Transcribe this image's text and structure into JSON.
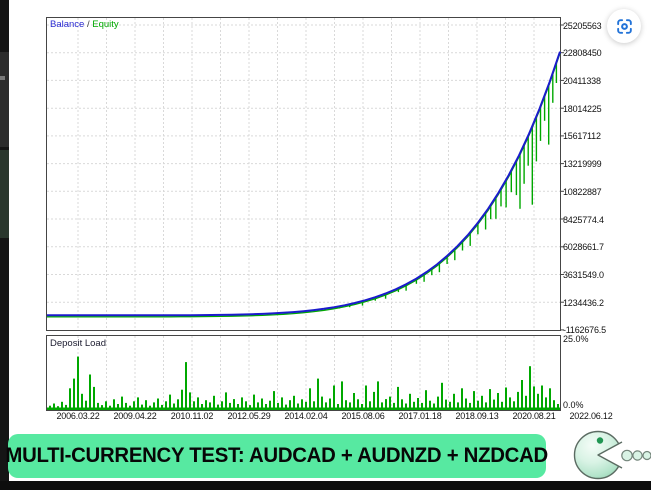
{
  "legend_separator": " / ",
  "colors": {
    "balance": "#1b1bcc",
    "equity": "#00a800",
    "deposit_bars": "#00a800",
    "grid": "#d9d9d9",
    "chart_border": "#454545",
    "accent_blue": "#2273d8",
    "banner_bg": "#57e9a1",
    "banner_text": "#070707",
    "logo_green": "#219653"
  },
  "icons": {
    "top_right_button": "screenshot-capture-icon",
    "bottom_right_logo": "pacman-logo"
  },
  "banner": {
    "text": "MULTI-CURRENCY TEST: AUDCAD + AUDNZD + NZDCAD"
  },
  "chart_data": [
    {
      "type": "line",
      "title": "Balance / Equity",
      "grid": true,
      "legend_position": "top-left",
      "y_axis": {
        "top_value_m": 25.2056,
        "step_m": 2.3971,
        "unit": "account currency"
      },
      "y_ticks": [
        "25205563",
        "22808450",
        "20411338",
        "18014225",
        "15617112",
        "13219999",
        "10822887",
        "8425774.4",
        "6028661.7",
        "3631549.0",
        "1234436.2",
        "-1162676.5"
      ],
      "x_labels": [
        "2006.03.22",
        "2009.04.22",
        "2010.11.02",
        "2012.05.29",
        "2014.02.04",
        "2015.08.06",
        "2017.01.18",
        "2018.09.13",
        "2020.08.21",
        "2022.06.12"
      ],
      "series": [
        {
          "name": "Balance",
          "x_frac_step": 0.02,
          "values_millions": [
            0.1,
            0.1,
            0.1,
            0.1,
            0.1,
            0.1,
            0.1,
            0.1,
            0.1,
            0.1,
            0.1,
            0.102,
            0.104,
            0.107,
            0.111,
            0.117,
            0.124,
            0.135,
            0.15,
            0.169,
            0.193,
            0.225,
            0.265,
            0.316,
            0.379,
            0.456,
            0.551,
            0.665,
            0.803,
            0.968,
            1.164,
            1.395,
            1.667,
            1.985,
            2.354,
            2.782,
            3.276,
            3.844,
            4.494,
            5.235,
            6.077,
            7.031,
            8.11,
            9.324,
            10.688,
            12.217,
            13.925,
            15.829,
            17.947,
            20.297,
            22.9
          ]
        },
        {
          "name": "Equity",
          "base": "Balance",
          "spikes_drop_millions": [
            [
              0.57,
              0.2
            ],
            [
              0.59,
              0.26
            ],
            [
              0.615,
              0.4
            ],
            [
              0.64,
              0.3
            ],
            [
              0.66,
              0.45
            ],
            [
              0.685,
              0.35
            ],
            [
              0.7,
              0.55
            ],
            [
              0.72,
              0.45
            ],
            [
              0.735,
              0.7
            ],
            [
              0.75,
              0.6
            ],
            [
              0.765,
              0.85
            ],
            [
              0.78,
              0.7
            ],
            [
              0.795,
              1.0
            ],
            [
              0.81,
              0.85
            ],
            [
              0.825,
              1.2
            ],
            [
              0.84,
              1.0
            ],
            [
              0.855,
              1.5
            ],
            [
              0.865,
              1.25
            ],
            [
              0.875,
              1.9
            ],
            [
              0.885,
              1.55
            ],
            [
              0.895,
              2.4
            ],
            [
              0.905,
              1.9
            ],
            [
              0.915,
              3.0
            ],
            [
              0.922,
              4.8
            ],
            [
              0.93,
              3.4
            ],
            [
              0.938,
              2.6
            ],
            [
              0.946,
              6.8
            ],
            [
              0.954,
              3.9
            ],
            [
              0.962,
              3.0
            ],
            [
              0.97,
              2.2
            ],
            [
              0.978,
              5.2
            ],
            [
              0.986,
              2.6
            ],
            [
              0.993,
              1.8
            ]
          ]
        }
      ]
    },
    {
      "type": "bar",
      "title": "Deposit Load",
      "y_top_label": "25.0%",
      "y_bottom_label": "0.0%",
      "full_scale_pct": 25.0,
      "bars_pct": [
        1.2,
        2.0,
        1.0,
        2.6,
        1.5,
        7.5,
        11.0,
        19.0,
        5.5,
        3.0,
        12.5,
        8.0,
        2.2,
        1.4,
        2.8,
        1.2,
        3.5,
        1.8,
        4.5,
        2.2,
        1.2,
        2.8,
        4.2,
        1.6,
        3.2,
        1.2,
        2.4,
        3.8,
        1.5,
        2.8,
        5.2,
        2.0,
        3.5,
        7.0,
        17.0,
        6.0,
        2.8,
        4.2,
        1.8,
        3.2,
        2.4,
        4.8,
        1.6,
        2.8,
        6.0,
        2.2,
        3.6,
        1.8,
        4.2,
        2.8,
        1.4,
        5.2,
        2.4,
        3.8,
        1.8,
        3.0,
        6.5,
        2.2,
        4.2,
        1.6,
        3.2,
        4.8,
        2.0,
        3.5,
        2.6,
        7.5,
        2.8,
        11.0,
        4.5,
        2.4,
        3.8,
        8.5,
        1.8,
        10.0,
        3.2,
        2.4,
        5.8,
        3.5,
        1.8,
        8.5,
        2.8,
        6.2,
        10.0,
        2.4,
        3.6,
        4.5,
        2.2,
        8.0,
        3.5,
        2.0,
        5.5,
        2.6,
        4.0,
        2.2,
        6.8,
        3.0,
        2.0,
        4.5,
        9.5,
        3.4,
        2.6,
        5.5,
        2.4,
        7.5,
        3.8,
        2.2,
        6.5,
        3.0,
        4.8,
        2.4,
        7.2,
        3.4,
        5.8,
        2.6,
        7.8,
        4.2,
        2.8,
        6.2,
        10.5,
        4.8,
        15.5,
        8.2,
        5.5,
        8.5,
        4.2,
        7.5,
        3.2,
        1.8
      ]
    }
  ]
}
